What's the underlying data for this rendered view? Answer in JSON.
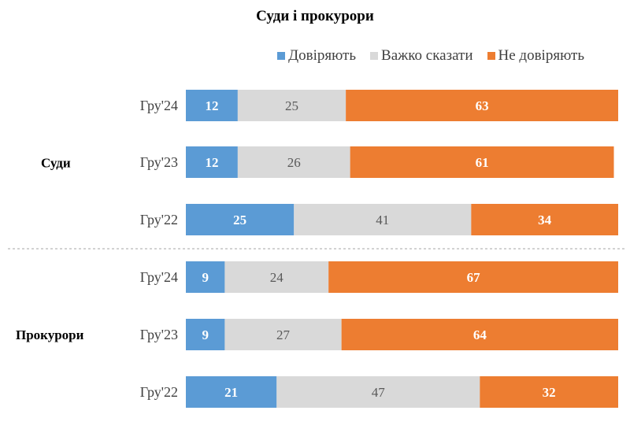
{
  "chart_data": {
    "type": "bar",
    "orientation": "horizontal",
    "stacked": true,
    "title": "Суди і прокурори",
    "xlim": [
      0,
      100
    ],
    "grid": false,
    "legend_placement": "top-right",
    "series": [
      {
        "name": "Довіряють",
        "color": "#5b9bd5",
        "label_color": "#ffffff"
      },
      {
        "name": "Важко сказати",
        "color": "#d9d9d9",
        "label_color": "#595959"
      },
      {
        "name": "Не  довіряють",
        "color": "#ed7d31",
        "label_color": "#ffffff"
      }
    ],
    "groups": [
      {
        "name": "Суди",
        "rows": [
          {
            "label": "Гру'24",
            "values": [
              12,
              25,
              63
            ]
          },
          {
            "label": "Гру'23",
            "values": [
              12,
              26,
              61
            ]
          },
          {
            "label": "Гру'22",
            "values": [
              25,
              41,
              34
            ]
          }
        ]
      },
      {
        "name": "Прокурори",
        "rows": [
          {
            "label": "Гру'24",
            "values": [
              9,
              24,
              67
            ]
          },
          {
            "label": "Гру'23",
            "values": [
              9,
              27,
              64
            ]
          },
          {
            "label": "Гру'22",
            "values": [
              21,
              47,
              32
            ]
          }
        ]
      }
    ]
  }
}
